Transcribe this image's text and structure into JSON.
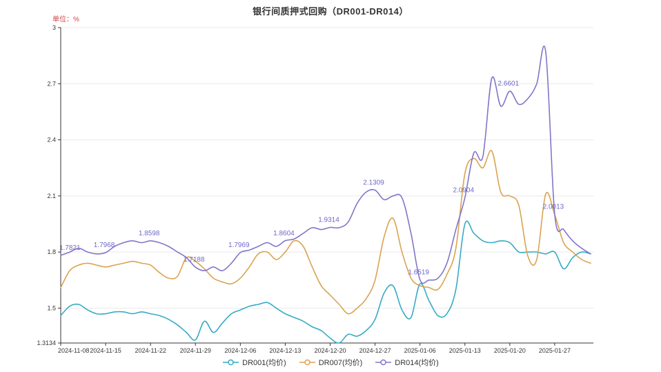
{
  "chart": {
    "title": "银行间质押式回购（DR001-DR014）",
    "unit_label": "单位：%"
  },
  "colors": {
    "title": "#333333",
    "unit_label": "#d04545",
    "axis": "#333333",
    "grid": "#e8e8e8",
    "annotation": "#6e68c8"
  },
  "chart_data": {
    "type": "line",
    "title": "银行间质押式回购（DR001-DR014）",
    "ylabel": "单位：%",
    "grid": true,
    "legend_position": "bottom",
    "ylim": [
      1.3134,
      3
    ],
    "yticks": [
      1.3134,
      1.5,
      1.8,
      2.1,
      2.4,
      2.7,
      3
    ],
    "ytick_labels": [
      "1.3134",
      "1.5",
      "1.8",
      "2.1",
      "2.4",
      "2.7",
      "3"
    ],
    "x": [
      "2024-11-08",
      "2024-11-11",
      "2024-11-12",
      "2024-11-13",
      "2024-11-14",
      "2024-11-15",
      "2024-11-18",
      "2024-11-19",
      "2024-11-20",
      "2024-11-21",
      "2024-11-22",
      "2024-11-25",
      "2024-11-26",
      "2024-11-27",
      "2024-11-28",
      "2024-11-29",
      "2024-12-02",
      "2024-12-03",
      "2024-12-04",
      "2024-12-05",
      "2024-12-06",
      "2024-12-09",
      "2024-12-10",
      "2024-12-11",
      "2024-12-12",
      "2024-12-13",
      "2024-12-16",
      "2024-12-17",
      "2024-12-18",
      "2024-12-19",
      "2024-12-20",
      "2024-12-23",
      "2024-12-24",
      "2024-12-25",
      "2024-12-26",
      "2024-12-27",
      "2024-12-30",
      "2024-12-31",
      "2025-01-02",
      "2025-01-03",
      "2025-01-06",
      "2025-01-07",
      "2025-01-08",
      "2025-01-09",
      "2025-01-10",
      "2025-01-13",
      "2025-01-14",
      "2025-01-15",
      "2025-01-16",
      "2025-01-17",
      "2025-01-20",
      "2025-01-21",
      "2025-01-22",
      "2025-01-23",
      "2025-01-24",
      "2025-01-27",
      "2025-02-05",
      "2025-02-06",
      "2025-02-07",
      "2025-02-10"
    ],
    "xtick_indices": [
      0,
      5,
      10,
      15,
      20,
      25,
      30,
      35,
      40,
      45,
      50,
      55
    ],
    "series": [
      {
        "key": "dr001",
        "name": "DR001(均价)",
        "color": "#35aac6",
        "values": [
          1.46,
          1.51,
          1.52,
          1.49,
          1.47,
          1.47,
          1.48,
          1.48,
          1.47,
          1.48,
          1.47,
          1.46,
          1.44,
          1.41,
          1.37,
          1.33,
          1.43,
          1.37,
          1.42,
          1.47,
          1.49,
          1.51,
          1.52,
          1.53,
          1.5,
          1.47,
          1.45,
          1.43,
          1.4,
          1.38,
          1.34,
          1.3134,
          1.36,
          1.35,
          1.38,
          1.44,
          1.58,
          1.62,
          1.49,
          1.45,
          1.63,
          1.54,
          1.46,
          1.47,
          1.6,
          1.95,
          1.9,
          1.86,
          1.85,
          1.86,
          1.85,
          1.8,
          1.8,
          1.8,
          1.79,
          1.8,
          1.71,
          1.77,
          1.8,
          1.79
        ]
      },
      {
        "key": "dr007",
        "name": "DR007(均价)",
        "color": "#dba24e",
        "values": [
          1.61,
          1.7,
          1.73,
          1.74,
          1.73,
          1.72,
          1.73,
          1.74,
          1.75,
          1.74,
          1.73,
          1.69,
          1.66,
          1.67,
          1.77,
          1.75,
          1.71,
          1.66,
          1.64,
          1.63,
          1.66,
          1.72,
          1.79,
          1.8,
          1.76,
          1.8,
          1.86,
          1.83,
          1.72,
          1.62,
          1.57,
          1.52,
          1.47,
          1.5,
          1.55,
          1.65,
          1.88,
          1.98,
          1.8,
          1.66,
          1.62,
          1.61,
          1.6,
          1.68,
          1.82,
          2.22,
          2.3,
          2.25,
          2.34,
          2.12,
          2.1,
          2.05,
          1.78,
          1.76,
          2.11,
          2.0,
          1.85,
          1.8,
          1.76,
          1.74
        ]
      },
      {
        "key": "dr014",
        "name": "DR014(均价)",
        "color": "#8274c9",
        "values": [
          1.7821,
          1.8,
          1.82,
          1.8,
          1.79,
          1.7968,
          1.83,
          1.85,
          1.86,
          1.85,
          1.8598,
          1.85,
          1.83,
          1.8,
          1.77,
          1.7188,
          1.7,
          1.72,
          1.7,
          1.74,
          1.7969,
          1.81,
          1.83,
          1.85,
          1.83,
          1.8604,
          1.87,
          1.9,
          1.93,
          1.92,
          1.9314,
          1.93,
          1.96,
          2.06,
          2.12,
          2.1309,
          2.08,
          2.1,
          2.09,
          1.9,
          1.6519,
          1.65,
          1.66,
          1.74,
          1.92,
          2.0904,
          2.33,
          2.31,
          2.73,
          2.58,
          2.6601,
          2.59,
          2.62,
          2.7,
          2.87,
          2.0013,
          1.92,
          1.86,
          1.82,
          1.79
        ]
      }
    ],
    "annotation_series": "dr014",
    "annotations": [
      {
        "index": 0,
        "label": "1.7821"
      },
      {
        "index": 5,
        "label": "1.7968"
      },
      {
        "index": 10,
        "label": "1.8598"
      },
      {
        "index": 15,
        "label": "1.7188"
      },
      {
        "index": 20,
        "label": "1.7969"
      },
      {
        "index": 25,
        "label": "1.8604"
      },
      {
        "index": 30,
        "label": "1.9314"
      },
      {
        "index": 35,
        "label": "2.1309"
      },
      {
        "index": 40,
        "label": "1.6519"
      },
      {
        "index": 45,
        "label": "2.0904"
      },
      {
        "index": 50,
        "label": "2.6601"
      },
      {
        "index": 55,
        "label": "2.0013"
      }
    ]
  }
}
